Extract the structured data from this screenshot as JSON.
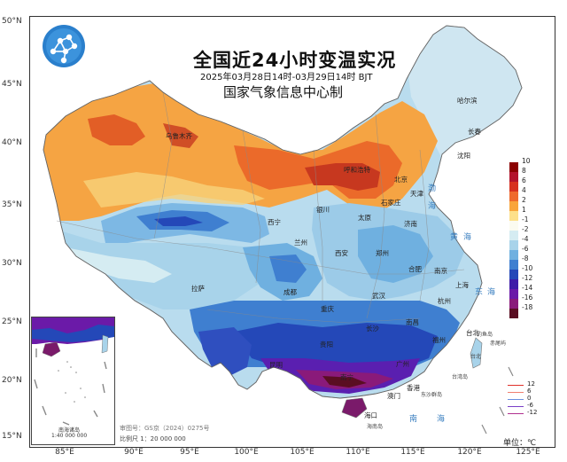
{
  "title": "全国近24小时变温实况",
  "subtitle": "2025年03月28日14时-03月29日14时 BJT",
  "agency": "国家气象信息中心制",
  "unit_label": "单位：℃",
  "approval_number": "审图号：GS京（2024）0275号",
  "scale_text": "比例尺 1：20 000 000",
  "inset": {
    "title": "南海诸岛",
    "scale": "1:40 000 000"
  },
  "lat_labels": [
    "50°N",
    "45°N",
    "40°N",
    "35°N",
    "30°N",
    "25°N",
    "20°N",
    "15°N"
  ],
  "lon_labels": [
    "85°E",
    "90°E",
    "95°E",
    "100°E",
    "105°E",
    "110°E",
    "115°E",
    "120°E",
    "125°E"
  ],
  "color_legend": [
    {
      "label": "10",
      "color": "#8b0000"
    },
    {
      "label": "8",
      "color": "#b3122b"
    },
    {
      "label": "6",
      "color": "#d7301f"
    },
    {
      "label": "4",
      "color": "#ef6a2c"
    },
    {
      "label": "2",
      "color": "#f9a53b"
    },
    {
      "label": "1",
      "color": "#fde08a"
    },
    {
      "label": "-1",
      "color": "#fbfbf0"
    },
    {
      "label": "-2",
      "color": "#d5ecf2"
    },
    {
      "label": "-4",
      "color": "#a8d3ea"
    },
    {
      "label": "-6",
      "color": "#6fb0e0"
    },
    {
      "label": "-8",
      "color": "#3f7fd0"
    },
    {
      "label": "-10",
      "color": "#2448b8"
    },
    {
      "label": "-12",
      "color": "#3e1ca8"
    },
    {
      "label": "-14",
      "color": "#6b1aa8"
    },
    {
      "label": "-16",
      "color": "#8a1a7a"
    },
    {
      "label": "-18",
      "color": "#5a0e22"
    }
  ],
  "line_legend": [
    {
      "label": "12",
      "color": "#e0302a"
    },
    {
      "label": "6",
      "color": "#f08070"
    },
    {
      "label": "0",
      "color": "#6a90e0"
    },
    {
      "label": "-6",
      "color": "#7a40c8"
    },
    {
      "label": "-12",
      "color": "#b03090"
    }
  ],
  "cities": [
    "乌鲁木齐",
    "呼和浩特",
    "北京",
    "天津",
    "石家庄",
    "太原",
    "银川",
    "西宁",
    "兰州",
    "西安",
    "郑州",
    "济南",
    "合肥",
    "南京",
    "上海",
    "武汉",
    "杭州",
    "成都",
    "重庆",
    "长沙",
    "南昌",
    "福州",
    "贵阳",
    "昆明",
    "南宁",
    "广州",
    "香港",
    "澳门",
    "海口",
    "拉萨",
    "台北",
    "哈尔滨",
    "长春",
    "沈阳"
  ],
  "small_labels": [
    "台北",
    "东沙群岛",
    "台湾岛",
    "海南岛",
    "钓鱼岛",
    "赤尾屿"
  ],
  "seas": [
    "渤",
    "海",
    "黄",
    "海",
    "东",
    "海",
    "南",
    "海"
  ]
}
